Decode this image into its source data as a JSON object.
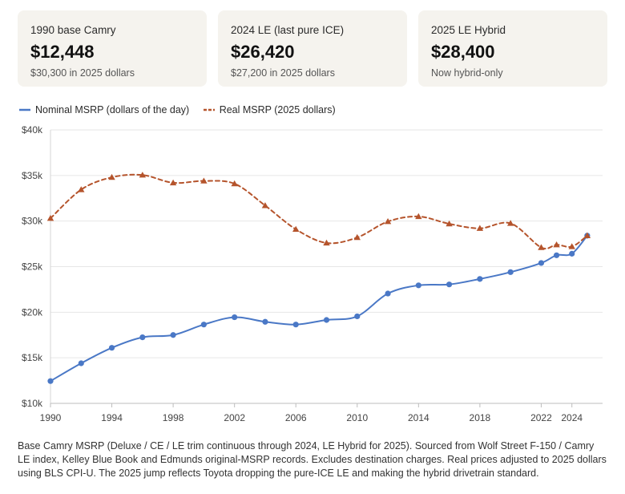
{
  "cards": [
    {
      "label": "1990 base Camry",
      "value": "$12,448",
      "sub": "$30,300 in 2025 dollars"
    },
    {
      "label": "2024 LE (last pure ICE)",
      "value": "$26,420",
      "sub": "$27,200 in 2025 dollars"
    },
    {
      "label": "2025 LE Hybrid",
      "value": "$28,400",
      "sub": "Now hybrid-only"
    }
  ],
  "legend": {
    "nominal_label": "Nominal MSRP (dollars of the day)",
    "real_label": "Real MSRP (2025 dollars)"
  },
  "caption": "Base Camry MSRP (Deluxe / CE / LE trim continuous through 2024, LE Hybrid for 2025). Sourced from Wolf Street F-150 / Camry LE index, Kelley Blue Book and Edmunds original-MSRP records. Excludes destination charges. Real prices adjusted to 2025 dollars using BLS CPI-U. The 2025 jump reflects Toyota dropping the pure-ICE LE and making the hybrid drivetrain standard.",
  "colors": {
    "nominal": "#4a78c6",
    "real": "#b5542c",
    "grid": "#e6e6e6",
    "axis_text": "#444444",
    "card_bg": "#f5f3ee"
  },
  "chart_data": {
    "type": "line",
    "title": "",
    "xlabel": "",
    "ylabel": "",
    "xlim": [
      1990,
      2026
    ],
    "ylim": [
      10000,
      40000
    ],
    "x_ticks": [
      1990,
      1994,
      1998,
      2002,
      2006,
      2010,
      2014,
      2018,
      2022,
      2024
    ],
    "y_ticks": [
      {
        "value": 10000,
        "label": "$10k"
      },
      {
        "value": 15000,
        "label": "$15k"
      },
      {
        "value": 20000,
        "label": "$20k"
      },
      {
        "value": 25000,
        "label": "$25k"
      },
      {
        "value": 30000,
        "label": "$30k"
      },
      {
        "value": 35000,
        "label": "$35k"
      },
      {
        "value": 40000,
        "label": "$40k"
      }
    ],
    "grid": "horizontal",
    "legend_position": "top-left",
    "x": [
      1990,
      1992,
      1994,
      1996,
      1998,
      2000,
      2002,
      2004,
      2006,
      2008,
      2010,
      2012,
      2014,
      2016,
      2018,
      2020,
      2022,
      2023,
      2024,
      2025
    ],
    "series": [
      {
        "name": "Nominal MSRP (dollars of the day)",
        "style": "solid",
        "marker": "circle",
        "values": [
          12448,
          14400,
          16100,
          17250,
          17500,
          18650,
          19450,
          18950,
          18650,
          19150,
          19550,
          22050,
          22950,
          23050,
          23650,
          24400,
          25400,
          26250,
          26420,
          28400
        ]
      },
      {
        "name": "Real MSRP (2025 dollars)",
        "style": "dashed",
        "marker": "triangle",
        "values": [
          30300,
          33450,
          34800,
          35050,
          34200,
          34400,
          34100,
          31700,
          29100,
          27600,
          28200,
          29950,
          30500,
          29700,
          29200,
          29750,
          27100,
          27400,
          27200,
          28400
        ]
      }
    ]
  }
}
